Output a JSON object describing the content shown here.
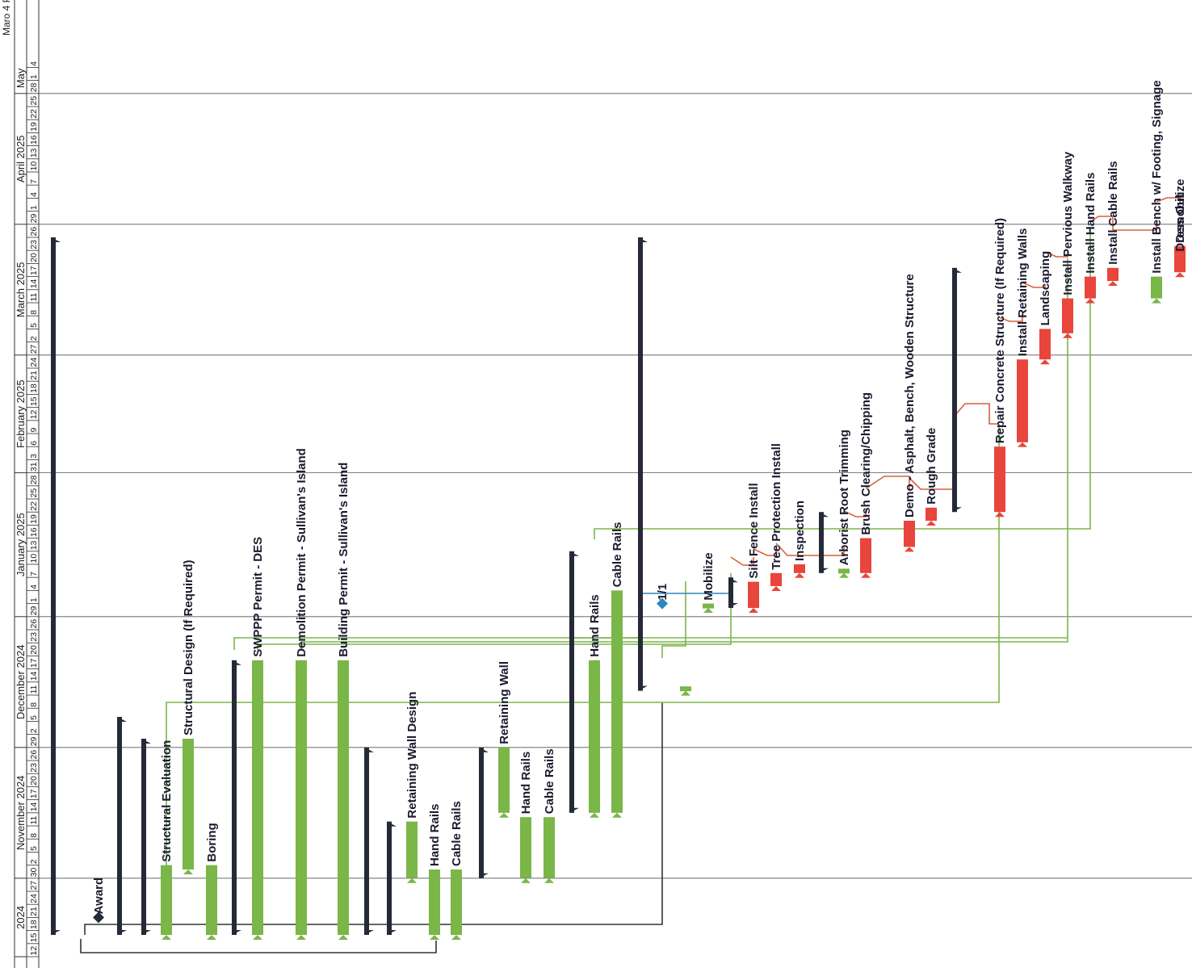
{
  "header": {
    "top_clip": "Maro 4 Part",
    "months": [
      {
        "label": "2024",
        "start": "2024-10-12",
        "end": "2024-10-30"
      },
      {
        "label": "November 2024",
        "start": "2024-10-30",
        "end": "2024-11-29"
      },
      {
        "label": "December 2024",
        "start": "2024-11-29",
        "end": "2024-12-29"
      },
      {
        "label": "January 2025",
        "start": "2024-12-29",
        "end": "2025-01-31"
      },
      {
        "label": "February 2025",
        "start": "2025-01-31",
        "end": "2025-02-27"
      },
      {
        "label": "March 2025",
        "start": "2025-02-27",
        "end": "2025-03-29"
      },
      {
        "label": "April 2025",
        "start": "2025-03-29",
        "end": "2025-04-28"
      },
      {
        "label": "May",
        "start": "2025-04-28",
        "end": "2025-05-05"
      }
    ],
    "day_ticks": [
      {
        "d": "2024-10-12",
        "l": "12"
      },
      {
        "d": "2024-10-15",
        "l": "15"
      },
      {
        "d": "2024-10-18",
        "l": "18"
      },
      {
        "d": "2024-10-21",
        "l": "21"
      },
      {
        "d": "2024-10-24",
        "l": "24"
      },
      {
        "d": "2024-10-27",
        "l": "27"
      },
      {
        "d": "2024-10-30",
        "l": "30"
      },
      {
        "d": "2024-11-02",
        "l": "2"
      },
      {
        "d": "2024-11-05",
        "l": "5"
      },
      {
        "d": "2024-11-08",
        "l": "8"
      },
      {
        "d": "2024-11-11",
        "l": "11"
      },
      {
        "d": "2024-11-14",
        "l": "14"
      },
      {
        "d": "2024-11-17",
        "l": "17"
      },
      {
        "d": "2024-11-20",
        "l": "20"
      },
      {
        "d": "2024-11-23",
        "l": "23"
      },
      {
        "d": "2024-11-26",
        "l": "26"
      },
      {
        "d": "2024-11-29",
        "l": "29"
      },
      {
        "d": "2024-12-02",
        "l": "2"
      },
      {
        "d": "2024-12-05",
        "l": "5"
      },
      {
        "d": "2024-12-08",
        "l": "8"
      },
      {
        "d": "2024-12-11",
        "l": "11"
      },
      {
        "d": "2024-12-14",
        "l": "14"
      },
      {
        "d": "2024-12-17",
        "l": "17"
      },
      {
        "d": "2024-12-20",
        "l": "20"
      },
      {
        "d": "2024-12-23",
        "l": "23"
      },
      {
        "d": "2024-12-26",
        "l": "26"
      },
      {
        "d": "2024-12-29",
        "l": "29"
      },
      {
        "d": "2025-01-01",
        "l": "1"
      },
      {
        "d": "2025-01-04",
        "l": "4"
      },
      {
        "d": "2025-01-07",
        "l": "7"
      },
      {
        "d": "2025-01-10",
        "l": "10"
      },
      {
        "d": "2025-01-13",
        "l": "13"
      },
      {
        "d": "2025-01-16",
        "l": "16"
      },
      {
        "d": "2025-01-19",
        "l": "19"
      },
      {
        "d": "2025-01-22",
        "l": "22"
      },
      {
        "d": "2025-01-25",
        "l": "25"
      },
      {
        "d": "2025-01-28",
        "l": "28"
      },
      {
        "d": "2025-01-31",
        "l": "31"
      },
      {
        "d": "2025-02-03",
        "l": "3"
      },
      {
        "d": "2025-02-06",
        "l": "6"
      },
      {
        "d": "2025-02-09",
        "l": "9"
      },
      {
        "d": "2025-02-12",
        "l": "12"
      },
      {
        "d": "2025-02-15",
        "l": "15"
      },
      {
        "d": "2025-02-18",
        "l": "18"
      },
      {
        "d": "2025-02-21",
        "l": "21"
      },
      {
        "d": "2025-02-24",
        "l": "24"
      },
      {
        "d": "2025-02-27",
        "l": "27"
      },
      {
        "d": "2025-03-02",
        "l": "2"
      },
      {
        "d": "2025-03-05",
        "l": "5"
      },
      {
        "d": "2025-03-08",
        "l": "8"
      },
      {
        "d": "2025-03-11",
        "l": "11"
      },
      {
        "d": "2025-03-14",
        "l": "14"
      },
      {
        "d": "2025-03-17",
        "l": "17"
      },
      {
        "d": "2025-03-20",
        "l": "20"
      },
      {
        "d": "2025-03-23",
        "l": "23"
      },
      {
        "d": "2025-03-26",
        "l": "26"
      },
      {
        "d": "2025-03-29",
        "l": "29"
      },
      {
        "d": "2025-04-01",
        "l": "1"
      },
      {
        "d": "2025-04-04",
        "l": "4"
      },
      {
        "d": "2025-04-07",
        "l": "7"
      },
      {
        "d": "2025-04-10",
        "l": "10"
      },
      {
        "d": "2025-04-13",
        "l": "13"
      },
      {
        "d": "2025-04-16",
        "l": "16"
      },
      {
        "d": "2025-04-19",
        "l": "19"
      },
      {
        "d": "2025-04-22",
        "l": "22"
      },
      {
        "d": "2025-04-25",
        "l": "25"
      },
      {
        "d": "2025-04-28",
        "l": "28"
      },
      {
        "d": "2025-05-01",
        "l": "1"
      },
      {
        "d": "2025-05-04",
        "l": "4"
      }
    ]
  },
  "colors": {
    "task": "#7ab648",
    "critical": "#e8453c",
    "summary": "#252a38",
    "milestone": "#2e86c1",
    "link_green": "#7ab648",
    "link_red": "#d9603a",
    "link_blue": "#2e86c1",
    "link_black": "#333333",
    "grid": "#555555"
  },
  "chart_data": {
    "type": "gantt",
    "orientation": "rotated-90",
    "axis": "time",
    "time_range": [
      "2024-10-12",
      "2025-05-05"
    ],
    "tasks": [
      {
        "name": "",
        "kind": "summary",
        "start": "2024-10-17",
        "finish": "2025-03-26"
      },
      {
        "name": "Award",
        "kind": "milestone",
        "start": "2024-10-21",
        "finish": "2024-10-21"
      },
      {
        "name": "",
        "kind": "summary",
        "start": "2024-10-17",
        "finish": "2024-12-06"
      },
      {
        "name": "",
        "kind": "summary",
        "start": "2024-10-17",
        "finish": "2024-12-01"
      },
      {
        "name": "Structural Evaluation",
        "kind": "task",
        "start": "2024-10-17",
        "finish": "2024-11-02"
      },
      {
        "name": "Structural Design (If Required)",
        "kind": "task",
        "start": "2024-11-01",
        "finish": "2024-12-01"
      },
      {
        "name": "Boring",
        "kind": "task",
        "start": "2024-10-17",
        "finish": "2024-11-02"
      },
      {
        "name": "",
        "kind": "summary",
        "start": "2024-10-17",
        "finish": "2024-12-19"
      },
      {
        "name": "SWPPP Permit - DES",
        "kind": "task",
        "start": "2024-10-17",
        "finish": "2024-12-19"
      },
      {
        "name": "Demolition Permit - Sullivan's Island",
        "kind": "task",
        "start": "2024-10-17",
        "finish": "2024-12-19"
      },
      {
        "name": "Building Permit - Sullivan's Island",
        "kind": "task",
        "start": "2024-10-17",
        "finish": "2024-12-19"
      },
      {
        "name": "",
        "kind": "summary",
        "start": "2024-10-17",
        "finish": "2024-11-29"
      },
      {
        "name": "",
        "kind": "summary",
        "start": "2024-10-17",
        "finish": "2024-11-12"
      },
      {
        "name": "Retaining Wall Design",
        "kind": "task",
        "start": "2024-10-30",
        "finish": "2024-11-12"
      },
      {
        "name": "Hand Rails",
        "kind": "task",
        "start": "2024-10-17",
        "finish": "2024-11-01"
      },
      {
        "name": "Cable Rails",
        "kind": "task",
        "start": "2024-10-17",
        "finish": "2024-11-01"
      },
      {
        "name": "",
        "kind": "summary",
        "start": "2024-10-30",
        "finish": "2024-11-29"
      },
      {
        "name": "Retaining Wall",
        "kind": "task",
        "start": "2024-11-14",
        "finish": "2024-11-29"
      },
      {
        "name": "Hand Rails",
        "kind": "task",
        "start": "2024-10-30",
        "finish": "2024-11-13"
      },
      {
        "name": "Cable Rails",
        "kind": "task",
        "start": "2024-10-30",
        "finish": "2024-11-13"
      },
      {
        "name": "",
        "kind": "summary",
        "start": "2024-11-14",
        "finish": "2025-01-13"
      },
      {
        "name": "Hand Rails",
        "kind": "task",
        "start": "2024-11-14",
        "finish": "2024-12-19"
      },
      {
        "name": "Cable Rails",
        "kind": "task",
        "start": "2024-11-14",
        "finish": "2025-01-04"
      },
      {
        "name": "",
        "kind": "summary",
        "start": "2024-12-12",
        "finish": "2025-03-26"
      },
      {
        "name": "1/1",
        "kind": "milestone",
        "start": "2025-01-01",
        "finish": "2025-01-01"
      },
      {
        "name": "",
        "kind": "task",
        "start": "2024-12-12",
        "finish": "2024-12-13"
      },
      {
        "name": "Mobilize",
        "kind": "task",
        "start": "2024-12-31",
        "finish": "2025-01-01"
      },
      {
        "name": "",
        "kind": "summary",
        "start": "2024-12-31",
        "finish": "2025-01-07"
      },
      {
        "name": "Silt Fence Install",
        "kind": "critical",
        "start": "2024-12-31",
        "finish": "2025-01-06"
      },
      {
        "name": "Tree Protection Install",
        "kind": "critical",
        "start": "2025-01-05",
        "finish": "2025-01-08"
      },
      {
        "name": "Inspection",
        "kind": "critical",
        "start": "2025-01-08",
        "finish": "2025-01-10"
      },
      {
        "name": "",
        "kind": "summary",
        "start": "2025-01-08",
        "finish": "2025-01-22"
      },
      {
        "name": "Arborist Root Trimming",
        "kind": "task",
        "start": "2025-01-08",
        "finish": "2025-01-09"
      },
      {
        "name": "Brush Clearing/Chipping",
        "kind": "critical",
        "start": "2025-01-08",
        "finish": "2025-01-16"
      },
      {
        "name": "Demo - Asphalt, Bench, Wooden Structure",
        "kind": "critical",
        "start": "2025-01-14",
        "finish": "2025-01-20"
      },
      {
        "name": "Rough Grade",
        "kind": "critical",
        "start": "2025-01-20",
        "finish": "2025-01-23"
      },
      {
        "name": "",
        "kind": "summary",
        "start": "2025-01-22",
        "finish": "2025-03-19"
      },
      {
        "name": "Repair Concrete Structure (If Required)",
        "kind": "critical",
        "start": "2025-01-22",
        "finish": "2025-02-06"
      },
      {
        "name": "Install Retaining Walls",
        "kind": "critical",
        "start": "2025-02-07",
        "finish": "2025-02-26"
      },
      {
        "name": "Landscaping",
        "kind": "critical",
        "start": "2025-02-26",
        "finish": "2025-03-05"
      },
      {
        "name": "Install Pervious Walkway",
        "kind": "critical",
        "start": "2025-03-04",
        "finish": "2025-03-12"
      },
      {
        "name": "Install Hand Rails",
        "kind": "critical",
        "start": "2025-03-12",
        "finish": "2025-03-17"
      },
      {
        "name": "Install Cable Rails",
        "kind": "critical",
        "start": "2025-03-16",
        "finish": "2025-03-19"
      },
      {
        "name": "Install Bench w/ Footing, Signage",
        "kind": "task",
        "start": "2025-03-12",
        "finish": "2025-03-17"
      },
      {
        "name": "Dress Out",
        "kind": "critical",
        "start": "2025-03-18",
        "finish": "2025-03-22"
      },
      {
        "name": "Demobilize",
        "kind": "critical",
        "start": "2025-03-22",
        "finish": "2025-03-24"
      }
    ]
  }
}
